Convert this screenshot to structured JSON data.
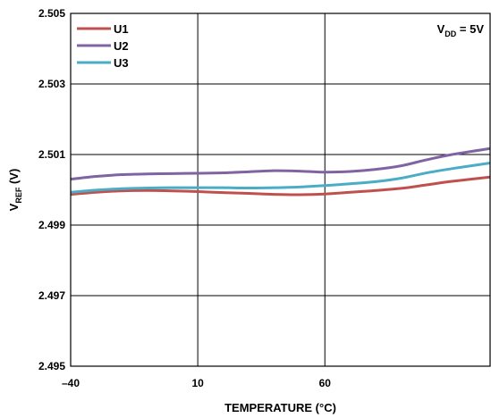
{
  "chart_data": {
    "type": "line",
    "title": "",
    "xlabel": "TEMPERATURE (°C)",
    "ylabel": {
      "main": "V",
      "sub": "REF",
      "unit": " (V)"
    },
    "annotation": {
      "main": "V",
      "sub": "DD",
      "rest": " = 5V"
    },
    "xlim": [
      -40,
      125
    ],
    "ylim": [
      2.495,
      2.505
    ],
    "x_ticks": [
      {
        "value": -40,
        "label": "–40"
      },
      {
        "value": 10,
        "label": "10"
      },
      {
        "value": 60,
        "label": "60"
      }
    ],
    "y_ticks": [
      {
        "value": 2.495,
        "label": "2.495"
      },
      {
        "value": 2.497,
        "label": "2.497"
      },
      {
        "value": 2.499,
        "label": "2.499"
      },
      {
        "value": 2.501,
        "label": "2.501"
      },
      {
        "value": 2.503,
        "label": "2.503"
      },
      {
        "value": 2.505,
        "label": "2.505"
      }
    ],
    "grid": true,
    "legend_position": "top-left",
    "series": [
      {
        "name": "U1",
        "color": "#c0504d",
        "x": [
          -40,
          -30,
          -20,
          -10,
          0,
          10,
          20,
          30,
          40,
          50,
          60,
          70,
          80,
          90,
          100,
          110,
          125
        ],
        "values": [
          2.49987,
          2.49993,
          2.49997,
          2.49998,
          2.49997,
          2.49995,
          2.49992,
          2.4999,
          2.49987,
          2.49986,
          2.49988,
          2.49993,
          2.49998,
          2.50004,
          2.50014,
          2.50024,
          2.50036
        ]
      },
      {
        "name": "U2",
        "color": "#8064a2",
        "x": [
          -40,
          -30,
          -20,
          -10,
          0,
          10,
          20,
          30,
          40,
          50,
          60,
          70,
          80,
          90,
          100,
          110,
          125
        ],
        "values": [
          2.5003,
          2.50038,
          2.50043,
          2.50045,
          2.50046,
          2.50047,
          2.50048,
          2.50051,
          2.50054,
          2.50053,
          2.5005,
          2.50052,
          2.50058,
          2.50068,
          2.50085,
          2.501,
          2.50117
        ]
      },
      {
        "name": "U3",
        "color": "#4bacc6",
        "x": [
          -40,
          -30,
          -20,
          -10,
          0,
          10,
          20,
          30,
          40,
          50,
          60,
          70,
          80,
          90,
          100,
          110,
          125
        ],
        "values": [
          2.49993,
          2.49999,
          2.50003,
          2.50005,
          2.50006,
          2.50006,
          2.50006,
          2.50005,
          2.50006,
          2.50008,
          2.50012,
          2.50017,
          2.50023,
          2.50033,
          2.50048,
          2.5006,
          2.50076
        ]
      }
    ]
  }
}
